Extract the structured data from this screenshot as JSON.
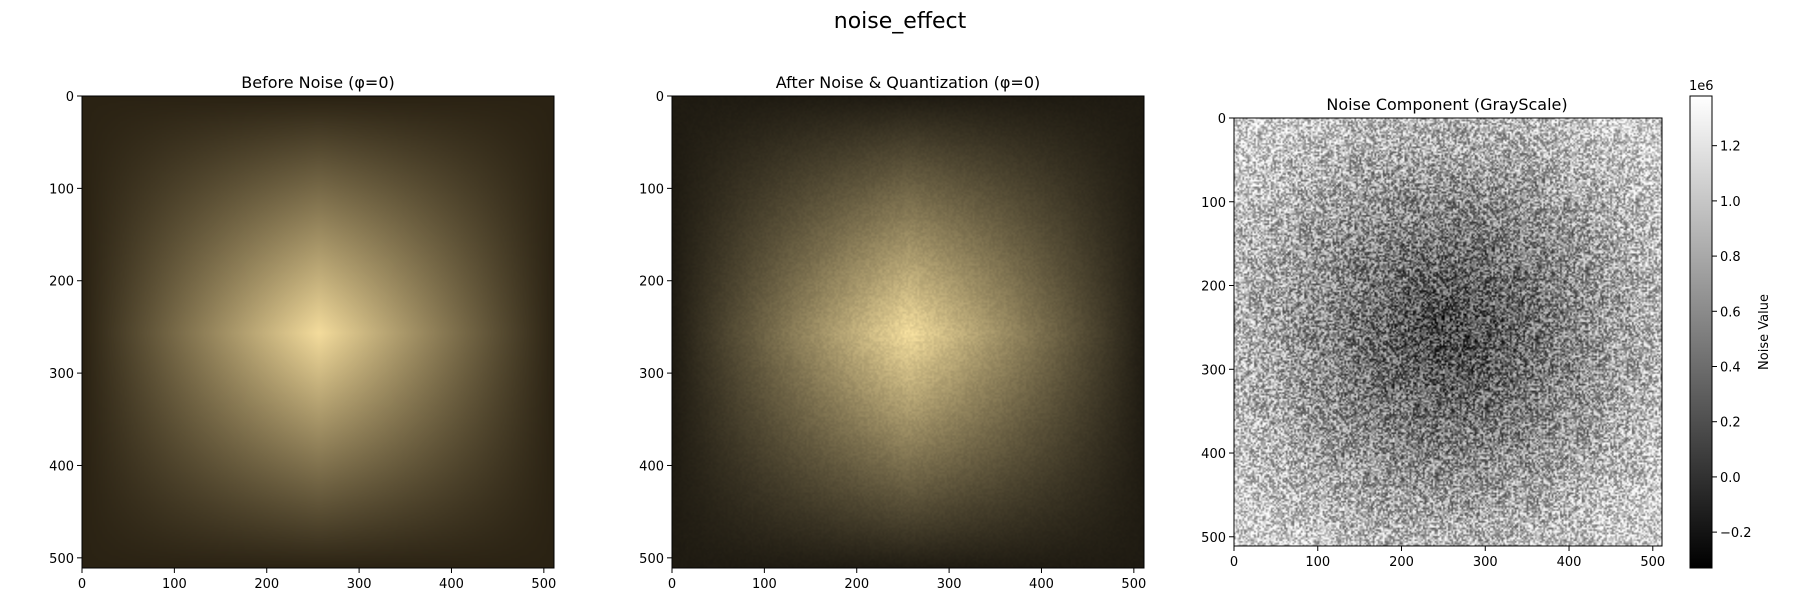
{
  "figure": {
    "title": "noise_effect"
  },
  "chart_data": [
    {
      "type": "heatmap",
      "title": "Before Noise (φ=0)",
      "colormap": "warm-beige",
      "center_color": "#f4dc9c",
      "edge_color": "#2a2213",
      "noise": 0,
      "xlim": [
        0,
        511
      ],
      "ylim": [
        511,
        0
      ],
      "xticks": [
        0,
        100,
        200,
        300,
        400,
        500
      ],
      "yticks": [
        0,
        100,
        200,
        300,
        400,
        500
      ]
    },
    {
      "type": "heatmap",
      "title": "After Noise & Quantization (φ=0)",
      "colormap": "warm-beige",
      "center_color": "#f2dc9c",
      "edge_color": "#1f1b12",
      "noise": 0.06,
      "xlim": [
        0,
        511
      ],
      "ylim": [
        511,
        0
      ],
      "xticks": [
        0,
        100,
        200,
        300,
        400,
        500
      ],
      "yticks": [
        0,
        100,
        200,
        300,
        400,
        500
      ]
    },
    {
      "type": "heatmap",
      "title": "Noise Component (GrayScale)",
      "colormap": "gray",
      "noise": 0.35,
      "xlim": [
        0,
        511
      ],
      "ylim": [
        511,
        0
      ],
      "xticks": [
        0,
        100,
        200,
        300,
        400,
        500
      ],
      "yticks": [
        0,
        100,
        200,
        300,
        400,
        500
      ],
      "colorbar": {
        "label": "Noise Value",
        "offset_text": "1e6",
        "range": [
          -0.33,
          1.38
        ],
        "ticks": [
          -0.2,
          0.0,
          0.2,
          0.4,
          0.6,
          0.8,
          1.0,
          1.2
        ],
        "tick_labels": [
          "−0.2",
          "0.0",
          "0.2",
          "0.4",
          "0.6",
          "0.8",
          "1.0",
          "1.2"
        ]
      }
    }
  ]
}
